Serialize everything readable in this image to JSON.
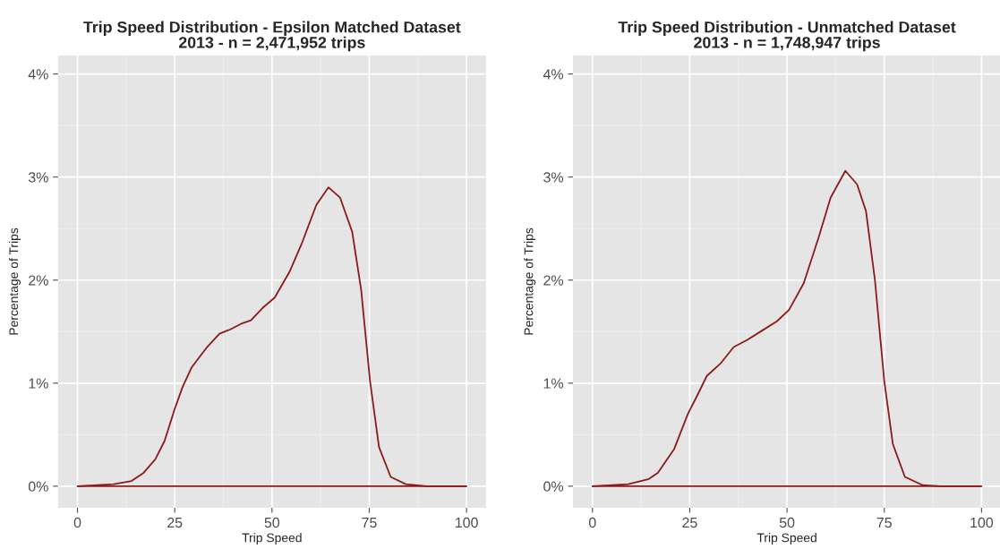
{
  "chart_data": [
    {
      "type": "line",
      "title": "Trip Speed Distribution - Epsilon Matched Dataset\n2013 - n = 2,471,952 trips",
      "xlabel": "Trip Speed",
      "ylabel": "Percentage of Trips",
      "xlim": [
        -5,
        105
      ],
      "xticks": [
        0,
        25,
        50,
        75,
        100
      ],
      "ylim": [
        -0.21,
        4.18
      ],
      "yticks": [
        {
          "value": 0,
          "label": "0%"
        },
        {
          "value": 1,
          "label": "1%"
        },
        {
          "value": 2,
          "label": "2%"
        },
        {
          "value": 3,
          "label": "3%"
        },
        {
          "value": 4,
          "label": "4%"
        }
      ],
      "grid": true,
      "ref_lines": [
        {
          "axis": "y",
          "value": 0,
          "color": "#8b1a1a"
        }
      ],
      "series": [
        {
          "color": "#8b1a1a",
          "x": [
            0,
            9.3,
            13.9,
            17,
            20,
            22.4,
            25,
            27,
            29.3,
            33.1,
            36.5,
            39.2,
            42.3,
            44.6,
            47.6,
            50.7,
            54.5,
            57.6,
            61.4,
            64.5,
            67.5,
            70.6,
            72.9,
            75.2,
            77.5,
            80.5,
            84.4,
            89.7,
            100
          ],
          "values": [
            0,
            0.02,
            0.05,
            0.13,
            0.26,
            0.44,
            0.75,
            0.96,
            1.15,
            1.34,
            1.48,
            1.52,
            1.58,
            1.61,
            1.73,
            1.83,
            2.08,
            2.35,
            2.73,
            2.9,
            2.8,
            2.47,
            1.91,
            1.02,
            0.38,
            0.09,
            0.02,
            0,
            0
          ]
        }
      ]
    },
    {
      "type": "line",
      "title": "Trip Speed Distribution - Unmatched Dataset\n2013 - n = 1,748,947 trips",
      "xlabel": "Trip Speed",
      "ylabel": "Percentage of Trips",
      "xlim": [
        -5,
        105
      ],
      "xticks": [
        0,
        25,
        50,
        75,
        100
      ],
      "ylim": [
        -0.21,
        4.18
      ],
      "yticks": [
        {
          "value": 0,
          "label": "0%"
        },
        {
          "value": 1,
          "label": "1%"
        },
        {
          "value": 2,
          "label": "2%"
        },
        {
          "value": 3,
          "label": "3%"
        },
        {
          "value": 4,
          "label": "4%"
        }
      ],
      "grid": true,
      "ref_lines": [
        {
          "axis": "y",
          "value": 0,
          "color": "#8b1a1a"
        }
      ],
      "series": [
        {
          "color": "#8b1a1a",
          "x": [
            0,
            9.2,
            14.5,
            16.8,
            21,
            24.5,
            26.8,
            29.4,
            32.9,
            36.3,
            39.8,
            43.6,
            47.4,
            50.5,
            54.3,
            58.1,
            61.2,
            65,
            68,
            70.3,
            72.6,
            75,
            77.2,
            80.3,
            84.9,
            89.4,
            100
          ],
          "values": [
            0,
            0.02,
            0.07,
            0.13,
            0.36,
            0.7,
            0.87,
            1.07,
            1.19,
            1.35,
            1.42,
            1.51,
            1.6,
            1.71,
            1.97,
            2.41,
            2.8,
            3.06,
            2.93,
            2.67,
            2,
            1.02,
            0.41,
            0.09,
            0.01,
            0,
            0
          ]
        }
      ]
    }
  ]
}
